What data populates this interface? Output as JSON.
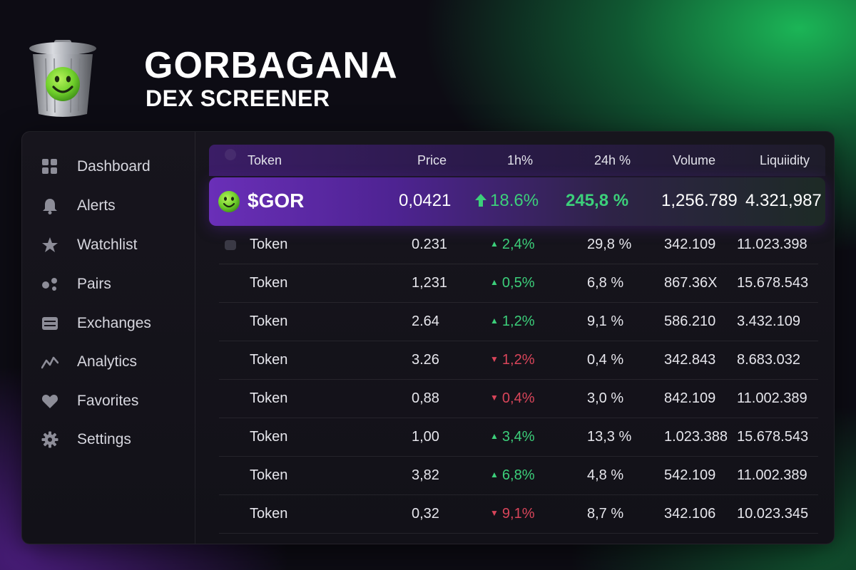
{
  "brand": {
    "title": "GORBAGANA",
    "subtitle": "DEX SCREENER"
  },
  "colors": {
    "accent_purple": "#6a2fb8",
    "positive": "#3ccf7a",
    "negative": "#d9455a",
    "background": "#0d0c14"
  },
  "sidebar": {
    "items": [
      {
        "label": "Dashboard",
        "icon": "grid-icon"
      },
      {
        "label": "Alerts",
        "icon": "bell-icon"
      },
      {
        "label": "Watchlist",
        "icon": "star-icon"
      },
      {
        "label": "Pairs",
        "icon": "pairs-icon"
      },
      {
        "label": "Exchanges",
        "icon": "exchange-icon"
      },
      {
        "label": "Analytics",
        "icon": "analytics-icon"
      },
      {
        "label": "Favorites",
        "icon": "heart-icon"
      },
      {
        "label": "Settings",
        "icon": "gear-icon"
      }
    ]
  },
  "table": {
    "columns": [
      "Token",
      "Price",
      "1h%",
      "24h %",
      "Volume",
      "Liquiidity"
    ],
    "featured": {
      "token": "$GOR",
      "price": "0,0421",
      "change_1h": "18.6%",
      "change_24h": "245,8 %",
      "volume": "1,256.789",
      "liquidity": "4.321,987"
    },
    "rows": [
      {
        "token": "Token",
        "price": "0.231",
        "change_1h": "2,4%",
        "dir": "up",
        "change_24h": "29,8 %",
        "volume": "342.109",
        "liquidity": "11.023.398"
      },
      {
        "token": "Token",
        "price": "1,231",
        "change_1h": "0,5%",
        "dir": "up",
        "change_24h": "6,8 %",
        "volume": "867.36X",
        "liquidity": "15.678.543"
      },
      {
        "token": "Token",
        "price": "2.64",
        "change_1h": "1,2%",
        "dir": "up",
        "change_24h": "9,1 %",
        "volume": "586.210",
        "liquidity": "3.432.109"
      },
      {
        "token": "Token",
        "price": "3.26",
        "change_1h": "1,2%",
        "dir": "down",
        "change_24h": "0,4 %",
        "volume": "342.843",
        "liquidity": "8.683.032"
      },
      {
        "token": "Token",
        "price": "0,88",
        "change_1h": "0,4%",
        "dir": "down",
        "change_24h": "3,0 %",
        "volume": "842.109",
        "liquidity": "11.002.389"
      },
      {
        "token": "Token",
        "price": "1,00",
        "change_1h": "3,4%",
        "dir": "up",
        "change_24h": "13,3 %",
        "volume": "1.023.388",
        "liquidity": "15.678.543"
      },
      {
        "token": "Token",
        "price": "3,82",
        "change_1h": "6,8%",
        "dir": "up",
        "change_24h": "4,8 %",
        "volume": "542.109",
        "liquidity": "11.002.389"
      },
      {
        "token": "Token",
        "price": "0,32",
        "change_1h": "9,1%",
        "dir": "down",
        "change_24h": "8,7 %",
        "volume": "342.106",
        "liquidity": "10.023.345"
      }
    ]
  }
}
